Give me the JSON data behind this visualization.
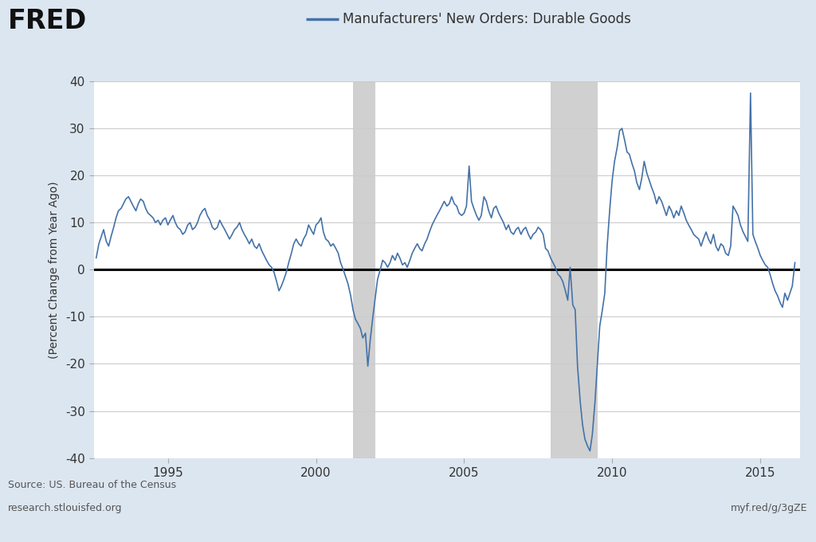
{
  "title": "Manufacturers' New Orders: Durable Goods",
  "ylabel": "(Percent Change from Year Ago)",
  "source_text": "Source: US. Bureau of the Census",
  "url_left": "research.stlouisfed.org",
  "url_right": "myf.red/g/3gZE",
  "background_color": "#dce6f0",
  "plot_bg_color": "#ffffff",
  "line_color": "#4472a8",
  "zero_line_color": "#000000",
  "grid_color": "#cccccc",
  "recession_color": "#d0d0d0",
  "ylim": [
    -40,
    40
  ],
  "yticks": [
    -40,
    -30,
    -20,
    -10,
    0,
    10,
    20,
    30,
    40
  ],
  "recession_bands": [
    {
      "start": 2001.25,
      "end": 2002.0
    },
    {
      "start": 2007.92,
      "end": 2009.5
    }
  ],
  "xmin": 1992.5,
  "xmax": 2016.33,
  "xticks": [
    1995,
    2000,
    2005,
    2010,
    2015
  ],
  "data": [
    [
      1992.58,
      2.5
    ],
    [
      1992.67,
      5.5
    ],
    [
      1992.75,
      7.0
    ],
    [
      1992.83,
      8.5
    ],
    [
      1992.92,
      6.0
    ],
    [
      1993.0,
      5.0
    ],
    [
      1993.08,
      7.0
    ],
    [
      1993.17,
      9.0
    ],
    [
      1993.25,
      11.0
    ],
    [
      1993.33,
      12.5
    ],
    [
      1993.42,
      13.0
    ],
    [
      1993.5,
      14.0
    ],
    [
      1993.58,
      15.0
    ],
    [
      1993.67,
      15.5
    ],
    [
      1993.75,
      14.5
    ],
    [
      1993.83,
      13.5
    ],
    [
      1993.92,
      12.5
    ],
    [
      1994.0,
      14.0
    ],
    [
      1994.08,
      15.0
    ],
    [
      1994.17,
      14.5
    ],
    [
      1994.25,
      13.0
    ],
    [
      1994.33,
      12.0
    ],
    [
      1994.42,
      11.5
    ],
    [
      1994.5,
      11.0
    ],
    [
      1994.58,
      10.0
    ],
    [
      1994.67,
      10.5
    ],
    [
      1994.75,
      9.5
    ],
    [
      1994.83,
      10.5
    ],
    [
      1994.92,
      11.0
    ],
    [
      1995.0,
      9.5
    ],
    [
      1995.08,
      10.5
    ],
    [
      1995.17,
      11.5
    ],
    [
      1995.25,
      10.0
    ],
    [
      1995.33,
      9.0
    ],
    [
      1995.42,
      8.5
    ],
    [
      1995.5,
      7.5
    ],
    [
      1995.58,
      8.0
    ],
    [
      1995.67,
      9.5
    ],
    [
      1995.75,
      10.0
    ],
    [
      1995.83,
      8.5
    ],
    [
      1995.92,
      9.0
    ],
    [
      1996.0,
      10.0
    ],
    [
      1996.08,
      11.5
    ],
    [
      1996.17,
      12.5
    ],
    [
      1996.25,
      13.0
    ],
    [
      1996.33,
      11.5
    ],
    [
      1996.42,
      10.5
    ],
    [
      1996.5,
      9.0
    ],
    [
      1996.58,
      8.5
    ],
    [
      1996.67,
      9.0
    ],
    [
      1996.75,
      10.5
    ],
    [
      1996.83,
      9.5
    ],
    [
      1996.92,
      8.5
    ],
    [
      1997.0,
      7.5
    ],
    [
      1997.08,
      6.5
    ],
    [
      1997.17,
      7.5
    ],
    [
      1997.25,
      8.5
    ],
    [
      1997.33,
      9.0
    ],
    [
      1997.42,
      10.0
    ],
    [
      1997.5,
      8.5
    ],
    [
      1997.58,
      7.5
    ],
    [
      1997.67,
      6.5
    ],
    [
      1997.75,
      5.5
    ],
    [
      1997.83,
      6.5
    ],
    [
      1997.92,
      5.0
    ],
    [
      1998.0,
      4.5
    ],
    [
      1998.08,
      5.5
    ],
    [
      1998.17,
      4.0
    ],
    [
      1998.25,
      3.0
    ],
    [
      1998.33,
      2.0
    ],
    [
      1998.42,
      1.0
    ],
    [
      1998.5,
      0.5
    ],
    [
      1998.58,
      -0.5
    ],
    [
      1998.67,
      -2.5
    ],
    [
      1998.75,
      -4.5
    ],
    [
      1998.83,
      -3.5
    ],
    [
      1998.92,
      -2.0
    ],
    [
      1999.0,
      -0.5
    ],
    [
      1999.08,
      1.5
    ],
    [
      1999.17,
      3.5
    ],
    [
      1999.25,
      5.5
    ],
    [
      1999.33,
      6.5
    ],
    [
      1999.42,
      5.5
    ],
    [
      1999.5,
      5.0
    ],
    [
      1999.58,
      6.5
    ],
    [
      1999.67,
      7.5
    ],
    [
      1999.75,
      9.5
    ],
    [
      1999.83,
      8.5
    ],
    [
      1999.92,
      7.5
    ],
    [
      2000.0,
      9.5
    ],
    [
      2000.08,
      10.0
    ],
    [
      2000.17,
      11.0
    ],
    [
      2000.25,
      8.0
    ],
    [
      2000.33,
      6.5
    ],
    [
      2000.42,
      6.0
    ],
    [
      2000.5,
      5.0
    ],
    [
      2000.58,
      5.5
    ],
    [
      2000.67,
      4.5
    ],
    [
      2000.75,
      3.5
    ],
    [
      2000.83,
      1.5
    ],
    [
      2000.92,
      0.0
    ],
    [
      2001.0,
      -1.5
    ],
    [
      2001.08,
      -3.0
    ],
    [
      2001.17,
      -5.5
    ],
    [
      2001.25,
      -8.5
    ],
    [
      2001.33,
      -10.5
    ],
    [
      2001.42,
      -11.5
    ],
    [
      2001.5,
      -12.5
    ],
    [
      2001.58,
      -14.5
    ],
    [
      2001.67,
      -13.5
    ],
    [
      2001.75,
      -20.5
    ],
    [
      2001.83,
      -15.0
    ],
    [
      2001.92,
      -10.0
    ],
    [
      2002.0,
      -6.0
    ],
    [
      2002.08,
      -2.0
    ],
    [
      2002.17,
      0.0
    ],
    [
      2002.25,
      2.0
    ],
    [
      2002.33,
      1.5
    ],
    [
      2002.42,
      0.5
    ],
    [
      2002.5,
      1.5
    ],
    [
      2002.58,
      3.0
    ],
    [
      2002.67,
      2.0
    ],
    [
      2002.75,
      3.5
    ],
    [
      2002.83,
      2.5
    ],
    [
      2002.92,
      1.0
    ],
    [
      2003.0,
      1.5
    ],
    [
      2003.08,
      0.5
    ],
    [
      2003.17,
      2.0
    ],
    [
      2003.25,
      3.5
    ],
    [
      2003.33,
      4.5
    ],
    [
      2003.42,
      5.5
    ],
    [
      2003.5,
      4.5
    ],
    [
      2003.58,
      4.0
    ],
    [
      2003.67,
      5.5
    ],
    [
      2003.75,
      6.5
    ],
    [
      2003.83,
      8.0
    ],
    [
      2003.92,
      9.5
    ],
    [
      2004.0,
      10.5
    ],
    [
      2004.08,
      11.5
    ],
    [
      2004.17,
      12.5
    ],
    [
      2004.25,
      13.5
    ],
    [
      2004.33,
      14.5
    ],
    [
      2004.42,
      13.5
    ],
    [
      2004.5,
      14.0
    ],
    [
      2004.58,
      15.5
    ],
    [
      2004.67,
      14.0
    ],
    [
      2004.75,
      13.5
    ],
    [
      2004.83,
      12.0
    ],
    [
      2004.92,
      11.5
    ],
    [
      2005.0,
      12.0
    ],
    [
      2005.08,
      13.5
    ],
    [
      2005.17,
      22.0
    ],
    [
      2005.25,
      14.5
    ],
    [
      2005.33,
      13.0
    ],
    [
      2005.42,
      11.5
    ],
    [
      2005.5,
      10.5
    ],
    [
      2005.58,
      11.5
    ],
    [
      2005.67,
      15.5
    ],
    [
      2005.75,
      14.5
    ],
    [
      2005.83,
      12.5
    ],
    [
      2005.92,
      11.0
    ],
    [
      2006.0,
      13.0
    ],
    [
      2006.08,
      13.5
    ],
    [
      2006.17,
      12.0
    ],
    [
      2006.25,
      11.0
    ],
    [
      2006.33,
      10.0
    ],
    [
      2006.42,
      8.5
    ],
    [
      2006.5,
      9.5
    ],
    [
      2006.58,
      8.0
    ],
    [
      2006.67,
      7.5
    ],
    [
      2006.75,
      8.5
    ],
    [
      2006.83,
      9.0
    ],
    [
      2006.92,
      7.5
    ],
    [
      2007.0,
      8.5
    ],
    [
      2007.08,
      9.0
    ],
    [
      2007.17,
      7.5
    ],
    [
      2007.25,
      6.5
    ],
    [
      2007.33,
      7.5
    ],
    [
      2007.42,
      8.0
    ],
    [
      2007.5,
      9.0
    ],
    [
      2007.58,
      8.5
    ],
    [
      2007.67,
      7.5
    ],
    [
      2007.75,
      4.5
    ],
    [
      2007.83,
      4.0
    ],
    [
      2007.92,
      2.5
    ],
    [
      2008.0,
      1.5
    ],
    [
      2008.08,
      0.5
    ],
    [
      2008.17,
      -1.0
    ],
    [
      2008.25,
      -1.5
    ],
    [
      2008.33,
      -2.5
    ],
    [
      2008.42,
      -4.5
    ],
    [
      2008.5,
      -6.5
    ],
    [
      2008.58,
      0.5
    ],
    [
      2008.67,
      -7.5
    ],
    [
      2008.75,
      -8.5
    ],
    [
      2008.83,
      -20.5
    ],
    [
      2008.92,
      -28.0
    ],
    [
      2009.0,
      -33.0
    ],
    [
      2009.08,
      -36.0
    ],
    [
      2009.17,
      -37.5
    ],
    [
      2009.25,
      -38.5
    ],
    [
      2009.33,
      -35.0
    ],
    [
      2009.42,
      -28.0
    ],
    [
      2009.5,
      -20.0
    ],
    [
      2009.58,
      -12.0
    ],
    [
      2009.67,
      -8.5
    ],
    [
      2009.75,
      -5.0
    ],
    [
      2009.83,
      5.0
    ],
    [
      2009.92,
      13.0
    ],
    [
      2010.0,
      19.0
    ],
    [
      2010.08,
      23.0
    ],
    [
      2010.17,
      26.0
    ],
    [
      2010.25,
      29.5
    ],
    [
      2010.33,
      30.0
    ],
    [
      2010.42,
      27.5
    ],
    [
      2010.5,
      25.0
    ],
    [
      2010.58,
      24.5
    ],
    [
      2010.67,
      22.5
    ],
    [
      2010.75,
      21.0
    ],
    [
      2010.83,
      18.5
    ],
    [
      2010.92,
      17.0
    ],
    [
      2011.0,
      19.5
    ],
    [
      2011.08,
      23.0
    ],
    [
      2011.17,
      20.5
    ],
    [
      2011.25,
      19.0
    ],
    [
      2011.33,
      17.5
    ],
    [
      2011.42,
      16.0
    ],
    [
      2011.5,
      14.0
    ],
    [
      2011.58,
      15.5
    ],
    [
      2011.67,
      14.5
    ],
    [
      2011.75,
      13.0
    ],
    [
      2011.83,
      11.5
    ],
    [
      2011.92,
      13.5
    ],
    [
      2012.0,
      12.5
    ],
    [
      2012.08,
      11.0
    ],
    [
      2012.17,
      12.5
    ],
    [
      2012.25,
      11.5
    ],
    [
      2012.33,
      13.5
    ],
    [
      2012.42,
      12.0
    ],
    [
      2012.5,
      10.5
    ],
    [
      2012.58,
      9.5
    ],
    [
      2012.67,
      8.5
    ],
    [
      2012.75,
      7.5
    ],
    [
      2012.83,
      7.0
    ],
    [
      2012.92,
      6.5
    ],
    [
      2013.0,
      5.0
    ],
    [
      2013.08,
      6.5
    ],
    [
      2013.17,
      8.0
    ],
    [
      2013.25,
      6.5
    ],
    [
      2013.33,
      5.5
    ],
    [
      2013.42,
      7.5
    ],
    [
      2013.5,
      5.0
    ],
    [
      2013.58,
      4.0
    ],
    [
      2013.67,
      5.5
    ],
    [
      2013.75,
      5.0
    ],
    [
      2013.83,
      3.5
    ],
    [
      2013.92,
      3.0
    ],
    [
      2014.0,
      5.0
    ],
    [
      2014.08,
      13.5
    ],
    [
      2014.17,
      12.5
    ],
    [
      2014.25,
      11.5
    ],
    [
      2014.33,
      9.5
    ],
    [
      2014.42,
      8.0
    ],
    [
      2014.5,
      7.0
    ],
    [
      2014.58,
      6.0
    ],
    [
      2014.67,
      37.5
    ],
    [
      2014.75,
      7.5
    ],
    [
      2014.83,
      6.0
    ],
    [
      2014.92,
      4.5
    ],
    [
      2015.0,
      3.0
    ],
    [
      2015.08,
      2.0
    ],
    [
      2015.17,
      1.0
    ],
    [
      2015.25,
      0.5
    ],
    [
      2015.33,
      -1.0
    ],
    [
      2015.42,
      -3.0
    ],
    [
      2015.5,
      -4.5
    ],
    [
      2015.58,
      -5.5
    ],
    [
      2015.67,
      -7.0
    ],
    [
      2015.75,
      -8.0
    ],
    [
      2015.83,
      -5.0
    ],
    [
      2015.92,
      -6.5
    ],
    [
      2016.0,
      -5.0
    ],
    [
      2016.08,
      -3.5
    ],
    [
      2016.17,
      1.5
    ]
  ]
}
